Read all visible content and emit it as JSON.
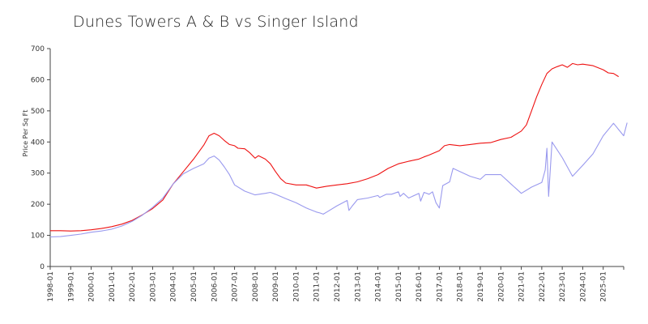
{
  "chart_data": {
    "type": "line",
    "title": "Dunes Towers A & B vs Singer Island",
    "xlabel": "",
    "ylabel": "Price Per Sq Ft",
    "ylim": [
      0,
      700
    ],
    "yticks": [
      0,
      100,
      200,
      300,
      400,
      500,
      600,
      700
    ],
    "xlim": [
      "1998-01",
      "2026-01"
    ],
    "xtick_labels": [
      "1998-01",
      "1999-01",
      "2000-01",
      "2001-01",
      "2002-01",
      "2003-01",
      "2004-01",
      "2005-01",
      "2006-01",
      "2007-01",
      "2008-01",
      "2009-01",
      "2010-01",
      "2011-01",
      "2012-01",
      "2013-01",
      "2014-01",
      "2015-01",
      "2016-01",
      "2017-01",
      "2018-01",
      "2019-01",
      "2020-01",
      "2021-01",
      "2022-01",
      "2023-01",
      "2024-01",
      "2025-01"
    ],
    "grid": false,
    "legend": "none",
    "series": [
      {
        "color": "#ee1111",
        "points": [
          [
            "1998-01",
            115
          ],
          [
            "1998-07",
            115
          ],
          [
            "1999-01",
            114
          ],
          [
            "1999-07",
            115
          ],
          [
            "2000-01",
            118
          ],
          [
            "2000-07",
            122
          ],
          [
            "2001-01",
            128
          ],
          [
            "2001-07",
            136
          ],
          [
            "2002-01",
            148
          ],
          [
            "2002-07",
            166
          ],
          [
            "2003-01",
            186
          ],
          [
            "2003-07",
            214
          ],
          [
            "2004-01",
            265
          ],
          [
            "2004-07",
            305
          ],
          [
            "2005-01",
            345
          ],
          [
            "2005-07",
            390
          ],
          [
            "2005-10",
            420
          ],
          [
            "2006-01",
            428
          ],
          [
            "2006-04",
            420
          ],
          [
            "2006-07",
            405
          ],
          [
            "2006-10",
            392
          ],
          [
            "2007-01",
            388
          ],
          [
            "2007-03",
            380
          ],
          [
            "2007-07",
            378
          ],
          [
            "2007-10",
            365
          ],
          [
            "2008-01",
            348
          ],
          [
            "2008-03",
            356
          ],
          [
            "2008-07",
            345
          ],
          [
            "2008-10",
            330
          ],
          [
            "2009-01",
            305
          ],
          [
            "2009-04",
            282
          ],
          [
            "2009-07",
            268
          ],
          [
            "2010-01",
            262
          ],
          [
            "2010-07",
            262
          ],
          [
            "2011-01",
            252
          ],
          [
            "2011-07",
            258
          ],
          [
            "2012-01",
            262
          ],
          [
            "2012-07",
            266
          ],
          [
            "2013-01",
            272
          ],
          [
            "2013-07",
            282
          ],
          [
            "2014-01",
            295
          ],
          [
            "2014-07",
            315
          ],
          [
            "2015-01",
            330
          ],
          [
            "2015-07",
            338
          ],
          [
            "2016-01",
            345
          ],
          [
            "2016-04",
            352
          ],
          [
            "2016-07",
            358
          ],
          [
            "2017-01",
            372
          ],
          [
            "2017-04",
            388
          ],
          [
            "2017-07",
            392
          ],
          [
            "2018-01",
            388
          ],
          [
            "2018-07",
            392
          ],
          [
            "2019-01",
            396
          ],
          [
            "2019-07",
            398
          ],
          [
            "2020-01",
            408
          ],
          [
            "2020-07",
            415
          ],
          [
            "2021-01",
            435
          ],
          [
            "2021-04",
            455
          ],
          [
            "2021-07",
            500
          ],
          [
            "2021-10",
            545
          ],
          [
            "2022-01",
            585
          ],
          [
            "2022-04",
            620
          ],
          [
            "2022-07",
            635
          ],
          [
            "2022-10",
            642
          ],
          [
            "2023-01",
            648
          ],
          [
            "2023-04",
            640
          ],
          [
            "2023-07",
            652
          ],
          [
            "2023-10",
            648
          ],
          [
            "2024-01",
            650
          ],
          [
            "2024-07",
            645
          ],
          [
            "2025-01",
            632
          ],
          [
            "2025-04",
            622
          ],
          [
            "2025-07",
            620
          ],
          [
            "2025-10",
            610
          ]
        ]
      },
      {
        "color": "#9999ee",
        "points": [
          [
            "1998-01",
            95
          ],
          [
            "1998-07",
            96
          ],
          [
            "1999-01",
            100
          ],
          [
            "1999-07",
            104
          ],
          [
            "2000-01",
            110
          ],
          [
            "2000-07",
            114
          ],
          [
            "2001-01",
            120
          ],
          [
            "2001-07",
            130
          ],
          [
            "2002-01",
            145
          ],
          [
            "2002-07",
            165
          ],
          [
            "2003-01",
            190
          ],
          [
            "2003-07",
            220
          ],
          [
            "2004-01",
            265
          ],
          [
            "2004-07",
            298
          ],
          [
            "2005-01",
            315
          ],
          [
            "2005-07",
            330
          ],
          [
            "2005-10",
            348
          ],
          [
            "2006-01",
            355
          ],
          [
            "2006-04",
            342
          ],
          [
            "2006-07",
            320
          ],
          [
            "2006-10",
            295
          ],
          [
            "2007-01",
            262
          ],
          [
            "2007-07",
            242
          ],
          [
            "2008-01",
            230
          ],
          [
            "2008-07",
            235
          ],
          [
            "2008-10",
            238
          ],
          [
            "2009-01",
            232
          ],
          [
            "2009-07",
            218
          ],
          [
            "2010-01",
            205
          ],
          [
            "2010-07",
            188
          ],
          [
            "2011-01",
            175
          ],
          [
            "2011-03",
            172
          ],
          [
            "2011-05",
            168
          ],
          [
            "2011-07",
            175
          ],
          [
            "2012-01",
            195
          ],
          [
            "2012-07",
            212
          ],
          [
            "2012-08",
            180
          ],
          [
            "2012-10",
            195
          ],
          [
            "2013-01",
            215
          ],
          [
            "2013-07",
            220
          ],
          [
            "2014-01",
            228
          ],
          [
            "2014-02",
            222
          ],
          [
            "2014-06",
            232
          ],
          [
            "2014-09",
            232
          ],
          [
            "2015-01",
            240
          ],
          [
            "2015-02",
            225
          ],
          [
            "2015-04",
            235
          ],
          [
            "2015-07",
            220
          ],
          [
            "2016-01",
            235
          ],
          [
            "2016-02",
            210
          ],
          [
            "2016-04",
            238
          ],
          [
            "2016-07",
            232
          ],
          [
            "2016-09",
            240
          ],
          [
            "2016-11",
            205
          ],
          [
            "2017-01",
            188
          ],
          [
            "2017-03",
            260
          ],
          [
            "2017-07",
            272
          ],
          [
            "2017-09",
            315
          ],
          [
            "2018-01",
            305
          ],
          [
            "2018-07",
            290
          ],
          [
            "2019-01",
            280
          ],
          [
            "2019-04",
            295
          ],
          [
            "2019-07",
            295
          ],
          [
            "2020-01",
            295
          ],
          [
            "2020-07",
            265
          ],
          [
            "2021-01",
            235
          ],
          [
            "2021-07",
            255
          ],
          [
            "2022-01",
            270
          ],
          [
            "2022-03",
            310
          ],
          [
            "2022-04",
            380
          ],
          [
            "2022-05",
            225
          ],
          [
            "2022-07",
            400
          ],
          [
            "2023-01",
            350
          ],
          [
            "2023-07",
            290
          ],
          [
            "2024-01",
            325
          ],
          [
            "2024-07",
            362
          ],
          [
            "2025-01",
            420
          ],
          [
            "2025-07",
            460
          ],
          [
            "2026-01",
            420
          ],
          [
            "2026-03",
            462
          ]
        ]
      }
    ]
  }
}
